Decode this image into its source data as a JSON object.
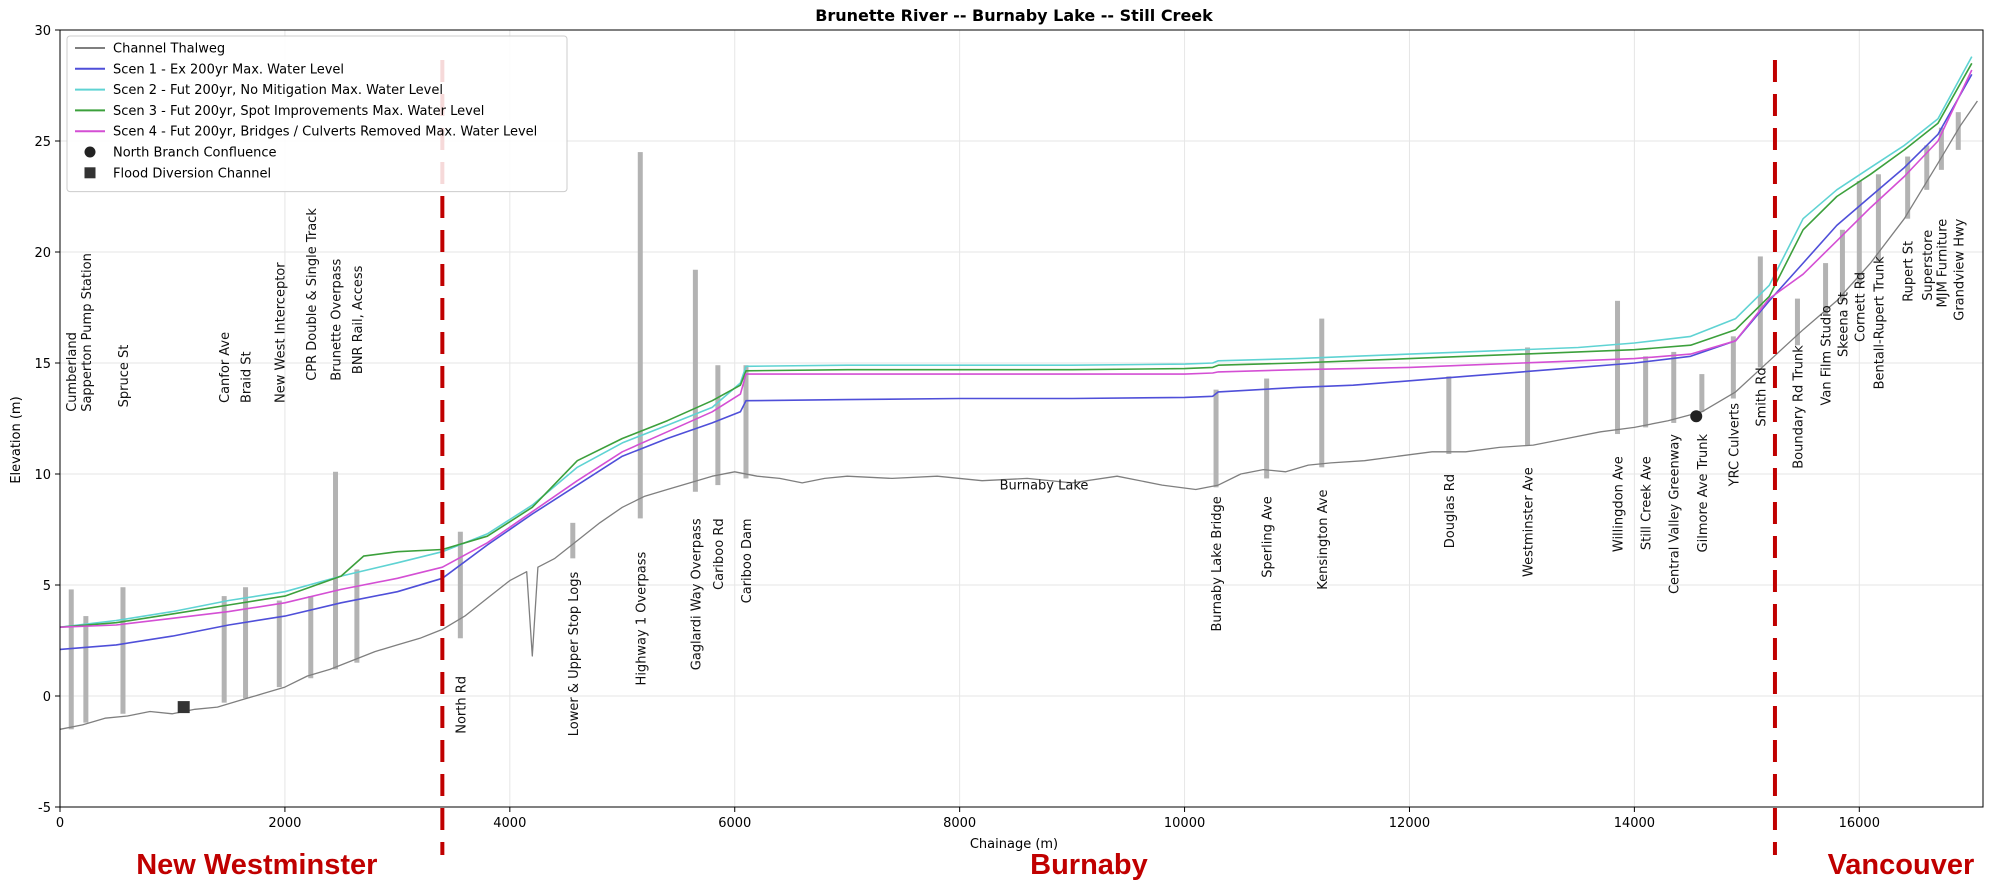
{
  "chart_data": {
    "type": "line",
    "title": "Brunette River -- Burnaby Lake -- Still Creek",
    "xlabel": "Chainage (m)",
    "ylabel": "Elevation (m)",
    "xlim": [
      0,
      17100
    ],
    "ylim": [
      -5,
      30
    ],
    "xticks": [
      0,
      2000,
      4000,
      6000,
      8000,
      10000,
      12000,
      14000,
      16000
    ],
    "yticks": [
      -5,
      0,
      5,
      10,
      15,
      20,
      25,
      30
    ],
    "grid": true,
    "legend_position": "top-left",
    "series": [
      {
        "name": "Channel Thalweg",
        "color": "#7f7f7f",
        "x": [
          0,
          200,
          400,
          600,
          800,
          1000,
          1200,
          1400,
          1600,
          1800,
          2000,
          2200,
          2400,
          2600,
          2800,
          3000,
          3200,
          3400,
          3600,
          3800,
          4000,
          4150,
          4200,
          4250,
          4400,
          4600,
          4800,
          5000,
          5200,
          5400,
          5600,
          5800,
          6000,
          6200,
          6400,
          6600,
          6800,
          7000,
          7400,
          7800,
          8200,
          8600,
          9000,
          9400,
          9800,
          10100,
          10300,
          10500,
          10700,
          10900,
          11100,
          11300,
          11600,
          11900,
          12200,
          12500,
          12800,
          13100,
          13400,
          13700,
          14000,
          14300,
          14600,
          14900,
          15200,
          15500,
          15800,
          16100,
          16400,
          16700,
          16900,
          17050
        ],
        "values": [
          -1.5,
          -1.3,
          -1.0,
          -0.9,
          -0.7,
          -0.8,
          -0.6,
          -0.5,
          -0.2,
          0.1,
          0.4,
          0.9,
          1.2,
          1.6,
          2.0,
          2.3,
          2.6,
          3.0,
          3.6,
          4.4,
          5.2,
          5.6,
          1.8,
          5.8,
          6.2,
          7.0,
          7.8,
          8.5,
          9.0,
          9.3,
          9.6,
          9.9,
          10.1,
          9.9,
          9.8,
          9.6,
          9.8,
          9.9,
          9.8,
          9.9,
          9.7,
          9.8,
          9.6,
          9.9,
          9.5,
          9.3,
          9.5,
          10.0,
          10.2,
          10.1,
          10.4,
          10.5,
          10.6,
          10.8,
          11.0,
          11.0,
          11.2,
          11.3,
          11.6,
          11.9,
          12.1,
          12.4,
          12.8,
          13.7,
          15.1,
          16.5,
          17.8,
          19.5,
          21.5,
          24.0,
          25.7,
          26.8
        ]
      },
      {
        "name": "Scen 1 - Ex 200yr Max. Water Level",
        "color": "#4f4fd9",
        "x": [
          0,
          500,
          1000,
          1500,
          2000,
          2500,
          3000,
          3400,
          3800,
          4200,
          4600,
          5000,
          5400,
          5800,
          6050,
          6100,
          7000,
          8000,
          9000,
          10000,
          10250,
          10300,
          11000,
          11500,
          12000,
          12500,
          13000,
          13500,
          14000,
          14500,
          14900,
          15200,
          15500,
          15800,
          16100,
          16400,
          16700,
          17000
        ],
        "values": [
          2.1,
          2.3,
          2.7,
          3.2,
          3.6,
          4.2,
          4.7,
          5.3,
          6.8,
          8.2,
          9.5,
          10.8,
          11.6,
          12.3,
          12.8,
          13.3,
          13.35,
          13.4,
          13.4,
          13.45,
          13.5,
          13.7,
          13.9,
          14.0,
          14.2,
          14.4,
          14.6,
          14.8,
          15.0,
          15.3,
          16.0,
          17.8,
          19.5,
          21.2,
          22.5,
          23.8,
          25.3,
          28.0
        ]
      },
      {
        "name": "Scen 2 - Fut 200yr, No Mitigation Max. Water Level",
        "color": "#5fd3d3",
        "x": [
          0,
          500,
          1000,
          1500,
          2000,
          2500,
          3000,
          3400,
          3800,
          4200,
          4600,
          5000,
          5400,
          5800,
          6050,
          6100,
          7000,
          8000,
          9000,
          10000,
          10250,
          10300,
          11000,
          11500,
          12000,
          12500,
          13000,
          13500,
          14000,
          14500,
          14900,
          15200,
          15500,
          15800,
          16100,
          16400,
          16700,
          17000
        ],
        "values": [
          3.1,
          3.4,
          3.8,
          4.3,
          4.7,
          5.4,
          6.0,
          6.5,
          7.3,
          8.6,
          10.3,
          11.4,
          12.2,
          13.0,
          14.1,
          14.85,
          14.9,
          14.9,
          14.9,
          14.95,
          15.0,
          15.1,
          15.2,
          15.3,
          15.4,
          15.5,
          15.6,
          15.7,
          15.9,
          16.2,
          17.0,
          18.5,
          21.5,
          22.8,
          23.8,
          24.8,
          26.0,
          28.8
        ]
      },
      {
        "name": "Scen 3 - Fut 200yr, Spot Improvements Max. Water Level",
        "color": "#3ca03c",
        "x": [
          0,
          500,
          1000,
          1500,
          2000,
          2500,
          2700,
          3000,
          3400,
          3800,
          4200,
          4600,
          5000,
          5400,
          5800,
          6050,
          6100,
          7000,
          8000,
          9000,
          10000,
          10250,
          10300,
          11000,
          11500,
          12000,
          12500,
          13000,
          13500,
          14000,
          14500,
          14900,
          15200,
          15500,
          15800,
          16100,
          16400,
          16700,
          17000
        ],
        "values": [
          3.1,
          3.3,
          3.7,
          4.1,
          4.5,
          5.4,
          6.3,
          6.5,
          6.6,
          7.2,
          8.5,
          10.6,
          11.6,
          12.4,
          13.3,
          14.0,
          14.65,
          14.7,
          14.7,
          14.7,
          14.75,
          14.8,
          14.9,
          15.0,
          15.1,
          15.2,
          15.3,
          15.4,
          15.5,
          15.6,
          15.8,
          16.5,
          18.0,
          21.0,
          22.5,
          23.5,
          24.6,
          25.8,
          28.5
        ]
      },
      {
        "name": "Scen 4 - Fut 200yr, Bridges / Culverts Removed Max. Water Level",
        "color": "#d44fd4",
        "x": [
          0,
          500,
          1000,
          1500,
          2000,
          2500,
          3000,
          3400,
          3800,
          4200,
          4600,
          5000,
          5400,
          5800,
          6050,
          6100,
          7000,
          8000,
          9000,
          10000,
          10250,
          10300,
          11000,
          11500,
          12000,
          12500,
          13000,
          13500,
          14000,
          14500,
          14900,
          15200,
          15500,
          15800,
          16100,
          16400,
          16700,
          17000
        ],
        "values": [
          3.1,
          3.2,
          3.5,
          3.8,
          4.2,
          4.8,
          5.3,
          5.8,
          6.9,
          8.3,
          9.7,
          11.0,
          11.9,
          12.8,
          13.6,
          14.5,
          14.5,
          14.5,
          14.5,
          14.5,
          14.55,
          14.6,
          14.7,
          14.75,
          14.8,
          14.9,
          15.0,
          15.1,
          15.2,
          15.4,
          16.0,
          17.9,
          19.0,
          20.5,
          22.0,
          23.4,
          25.0,
          28.2
        ]
      }
    ],
    "markers": [
      {
        "name": "North Branch Confluence",
        "shape": "circle",
        "x": 14550,
        "y": 12.6
      },
      {
        "name": "Flood Diversion Channel",
        "shape": "square",
        "x": 1100,
        "y": -0.5
      }
    ],
    "structures": [
      {
        "name": "Cumberland",
        "x": 100,
        "bar_bottom": -1.5,
        "bar_top": 4.8,
        "label_y": 12.8,
        "label_side": "above"
      },
      {
        "name": "Sapperton Pump Station",
        "x": 230,
        "bar_bottom": -1.2,
        "bar_top": 3.6,
        "label_y": 12.8,
        "label_side": "above"
      },
      {
        "name": "Spruce St",
        "x": 560,
        "bar_bottom": -0.8,
        "bar_top": 4.9,
        "label_y": 13.0,
        "label_side": "above"
      },
      {
        "name": "Canfor Ave",
        "x": 1460,
        "bar_bottom": -0.3,
        "bar_top": 4.5,
        "label_y": 13.2,
        "label_side": "above"
      },
      {
        "name": "Braid St",
        "x": 1650,
        "bar_bottom": -0.1,
        "bar_top": 4.9,
        "label_y": 13.2,
        "label_side": "above"
      },
      {
        "name": "New West Interceptor",
        "x": 1950,
        "bar_bottom": 0.4,
        "bar_top": 4.3,
        "label_y": 13.2,
        "label_side": "above"
      },
      {
        "name": "CPR Double & Single Track",
        "x": 2230,
        "bar_bottom": 0.8,
        "bar_top": 4.5,
        "label_y": 14.2,
        "label_side": "above"
      },
      {
        "name": "Brunette Overpass",
        "x": 2450,
        "bar_bottom": 1.2,
        "bar_top": 10.1,
        "label_y": 14.2,
        "label_side": "above"
      },
      {
        "name": "BNR Rail, Access",
        "x": 2640,
        "bar_bottom": 1.5,
        "bar_top": 5.7,
        "label_y": 14.5,
        "label_side": "above"
      },
      {
        "name": "North Rd",
        "x": 3560,
        "bar_bottom": 2.6,
        "bar_top": 7.4,
        "label_y": 0.9,
        "label_side": "below"
      },
      {
        "name": "Lower & Upper Stop Logs",
        "x": 4560,
        "bar_bottom": 6.2,
        "bar_top": 7.8,
        "label_y": 5.6,
        "label_side": "below"
      },
      {
        "name": "Highway 1 Overpass",
        "x": 5160,
        "bar_bottom": 8.0,
        "bar_top": 24.5,
        "label_y": 6.5,
        "label_side": "below"
      },
      {
        "name": "Gaglardi Way Overpass",
        "x": 5650,
        "bar_bottom": 9.2,
        "bar_top": 19.2,
        "label_y": 8.0,
        "label_side": "below"
      },
      {
        "name": "Cariboo Rd",
        "x": 5850,
        "bar_bottom": 9.5,
        "bar_top": 14.9,
        "label_y": 8.0,
        "label_side": "below"
      },
      {
        "name": "Cariboo Dam",
        "x": 6100,
        "bar_bottom": 9.8,
        "bar_top": 14.9,
        "label_y": 8.0,
        "label_side": "below"
      },
      {
        "name": "Burnaby Lake Bridge",
        "x": 10280,
        "bar_bottom": 9.4,
        "bar_top": 13.8,
        "label_y": 9.0,
        "label_side": "below"
      },
      {
        "name": "Sperling Ave",
        "x": 10730,
        "bar_bottom": 9.8,
        "bar_top": 14.3,
        "label_y": 9.0,
        "label_side": "below"
      },
      {
        "name": "Kensington Ave",
        "x": 11220,
        "bar_bottom": 10.3,
        "bar_top": 17.0,
        "label_y": 9.3,
        "label_side": "below"
      },
      {
        "name": "Douglas Rd",
        "x": 12350,
        "bar_bottom": 10.9,
        "bar_top": 14.4,
        "label_y": 10.0,
        "label_side": "below"
      },
      {
        "name": "Westminster Ave",
        "x": 13050,
        "bar_bottom": 11.3,
        "bar_top": 15.7,
        "label_y": 10.3,
        "label_side": "below"
      },
      {
        "name": "Willingdon Ave",
        "x": 13850,
        "bar_bottom": 11.8,
        "bar_top": 17.8,
        "label_y": 10.8,
        "label_side": "below"
      },
      {
        "name": "Still Creek Ave",
        "x": 14100,
        "bar_bottom": 12.1,
        "bar_top": 15.3,
        "label_y": 10.8,
        "label_side": "below"
      },
      {
        "name": "Central Valley Greenway",
        "x": 14350,
        "bar_bottom": 12.3,
        "bar_top": 15.5,
        "label_y": 11.8,
        "label_side": "below"
      },
      {
        "name": "Gilmore Ave Trunk",
        "x": 14600,
        "bar_bottom": 12.8,
        "bar_top": 14.5,
        "label_y": 11.8,
        "label_side": "below"
      },
      {
        "name": "YRC Culverts",
        "x": 14880,
        "bar_bottom": 13.4,
        "bar_top": 16.2,
        "label_y": 13.2,
        "label_side": "below"
      },
      {
        "name": "Smith Rd",
        "x": 15120,
        "bar_bottom": 14.8,
        "bar_top": 19.8,
        "label_y": 14.8,
        "label_side": "below"
      },
      {
        "name": "Boundary Rd Trunk",
        "x": 15450,
        "bar_bottom": 15.8,
        "bar_top": 17.9,
        "label_y": 15.8,
        "label_side": "below"
      },
      {
        "name": "Van Film Studio",
        "x": 15700,
        "bar_bottom": 17.2,
        "bar_top": 19.5,
        "label_y": 17.6,
        "label_side": "below"
      },
      {
        "name": "Skeena St",
        "x": 15850,
        "bar_bottom": 17.8,
        "bar_top": 21.0,
        "label_y": 18.2,
        "label_side": "below"
      },
      {
        "name": "Cornett Rd",
        "x": 16000,
        "bar_bottom": 18.6,
        "bar_top": 23.2,
        "label_y": 19.1,
        "label_side": "below"
      },
      {
        "name": "Bentall-Rupert Trunk",
        "x": 16170,
        "bar_bottom": 19.6,
        "bar_top": 23.5,
        "label_y": 19.8,
        "label_side": "below"
      },
      {
        "name": "Rupert St",
        "x": 16430,
        "bar_bottom": 21.5,
        "bar_top": 24.3,
        "label_y": 20.5,
        "label_side": "below"
      },
      {
        "name": "Superstore",
        "x": 16600,
        "bar_bottom": 22.8,
        "bar_top": 24.8,
        "label_y": 21.0,
        "label_side": "below"
      },
      {
        "name": "MJM Furniture",
        "x": 16730,
        "bar_bottom": 23.7,
        "bar_top": 25.6,
        "label_y": 21.5,
        "label_side": "below"
      },
      {
        "name": "Grandview Hwy",
        "x": 16880,
        "bar_bottom": 24.6,
        "bar_top": 26.3,
        "label_y": 21.5,
        "label_side": "below"
      }
    ],
    "annotations": [
      {
        "text": "Burnaby Lake",
        "x": 8750,
        "y": 9.3
      }
    ],
    "boundaries": [
      {
        "x": 3400,
        "color": "#c00000"
      },
      {
        "x": 15250,
        "color": "#c00000"
      }
    ],
    "region_labels": [
      {
        "text": "New Westminster",
        "x": 1750
      },
      {
        "text": "Burnaby",
        "x": 9150
      },
      {
        "text": "Vancouver",
        "x": 16370
      }
    ]
  }
}
